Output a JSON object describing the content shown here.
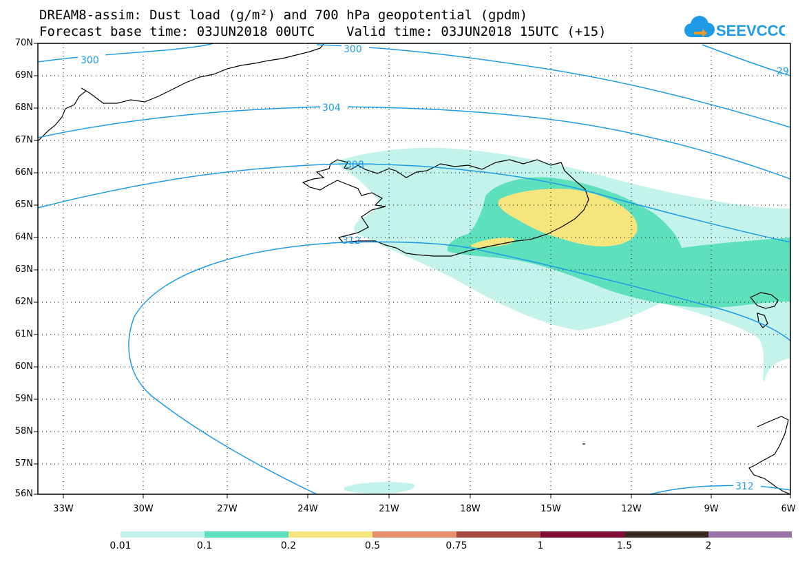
{
  "title_line1": "DREAM8-assim: Dust load (g/m²) and 700 hPa geopotential (gpdm)",
  "title_line2": "Forecast base time: 03JUN2018 00UTC    Valid time: 03JUN2018 15UTC (+15)",
  "logo_text": "SEEVCCC",
  "colors": {
    "contour": "#1e9be6",
    "coast": "#000000",
    "bins": [
      "#c3f3ea",
      "#5fe0bc",
      "#f6e57c",
      "#e98e6b",
      "#a6493f",
      "#800b35",
      "#3a2a1e",
      "#9a72a8"
    ]
  },
  "map": {
    "lon_range": [
      -34.0,
      -6.0
    ],
    "lat_range": [
      56,
      70
    ],
    "lat_labels": [
      "70N",
      "69N",
      "68N",
      "67N",
      "66N",
      "65N",
      "64N",
      "63N",
      "62N",
      "61N",
      "60N",
      "59N",
      "58N",
      "57N",
      "56N"
    ],
    "lon_labels": [
      "33W",
      "30W",
      "27W",
      "24W",
      "21W",
      "18W",
      "15W",
      "12W",
      "9W",
      "6W"
    ],
    "contour_labels": [
      "300",
      "300",
      "29",
      "304",
      "308",
      "312",
      "312"
    ]
  },
  "colorbar": {
    "labels": [
      "0.01",
      "0.1",
      "0.2",
      "0.5",
      "0.75",
      "1",
      "1.5",
      "2"
    ]
  }
}
